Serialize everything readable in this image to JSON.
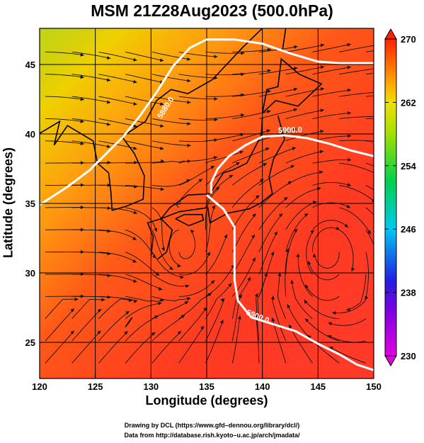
{
  "chart_data": {
    "type": "heatmap",
    "title": "MSM 21Z28Aug2023 (500.0hPa)",
    "xlabel": "Longitude (degrees)",
    "ylabel": "Latitude  (degrees)",
    "xlim": [
      120,
      150
    ],
    "ylim": [
      22.4,
      47.6
    ],
    "x_ticks": [
      120,
      125,
      130,
      135,
      140,
      145,
      150
    ],
    "y_ticks": [
      25,
      30,
      35,
      40,
      45
    ],
    "colorbar": {
      "min": 230,
      "max": 270,
      "ticks": [
        230,
        238,
        246,
        254,
        262,
        270
      ],
      "colors": [
        "#e000e0",
        "#2020e0",
        "#00c8f0",
        "#00d050",
        "#a0e000",
        "#f0e000",
        "#ff8000",
        "#ff2000"
      ]
    },
    "contours": [
      {
        "label": "5880.0",
        "points": [
          [
            120,
            34.9
          ],
          [
            122.5,
            36.2
          ],
          [
            124.5,
            37.4
          ],
          [
            126,
            38.6
          ],
          [
            127.5,
            39.8
          ],
          [
            129,
            41.3
          ],
          [
            130.5,
            43.0
          ],
          [
            132,
            44.9
          ],
          [
            133.5,
            46.2
          ],
          [
            135,
            46.8
          ],
          [
            137.5,
            46.8
          ],
          [
            140,
            46.5
          ],
          [
            142.5,
            45.8
          ],
          [
            145,
            45.2
          ],
          [
            147,
            45.1
          ],
          [
            150,
            45.1
          ]
        ]
      },
      {
        "label": "5900.0",
        "points": [
          [
            135.4,
            35.7
          ],
          [
            135.4,
            36.5
          ],
          [
            136.0,
            37.5
          ],
          [
            137.0,
            38.4
          ],
          [
            138.5,
            39.2
          ],
          [
            140,
            39.8
          ],
          [
            142,
            39.9
          ],
          [
            144,
            39.7
          ],
          [
            146,
            39.3
          ],
          [
            148,
            38.8
          ],
          [
            150,
            38.4
          ]
        ]
      },
      {
        "label": "5900.0",
        "points": [
          [
            135.0,
            35.6
          ],
          [
            136.5,
            34.6
          ],
          [
            137.5,
            33.3
          ],
          [
            137.5,
            31.5
          ],
          [
            137.5,
            29.5
          ],
          [
            137.8,
            28.0
          ],
          [
            139,
            26.8
          ],
          [
            141,
            26.3
          ],
          [
            143,
            25.8
          ],
          [
            145,
            24.9
          ],
          [
            147,
            24.1
          ],
          [
            148.5,
            23.4
          ],
          [
            150,
            23.0
          ]
        ]
      }
    ],
    "temperature_regions": [
      {
        "x": 120,
        "y": 45.0,
        "value": 259
      },
      {
        "x": 121.5,
        "y": 42.5,
        "value": 261
      },
      {
        "x": 125,
        "y": 44.0,
        "value": 263
      },
      {
        "x": 128,
        "y": 41.0,
        "value": 265
      },
      {
        "x": 135,
        "y": 44.0,
        "value": 266
      },
      {
        "x": 140,
        "y": 42.0,
        "value": 267
      },
      {
        "x": 145,
        "y": 40.0,
        "value": 268
      },
      {
        "x": 130,
        "y": 32.0,
        "value": 268
      },
      {
        "x": 140,
        "y": 28.0,
        "value": 268
      },
      {
        "x": 148,
        "y": 30.0,
        "value": 269
      }
    ]
  },
  "credits": {
    "line1": "Drawing by DCL (https://www.gfd–dennou.org/library/dcl/)",
    "line2": "Data from http://database.rish.kyoto–u.ac.jp/arch/jmadata/"
  }
}
